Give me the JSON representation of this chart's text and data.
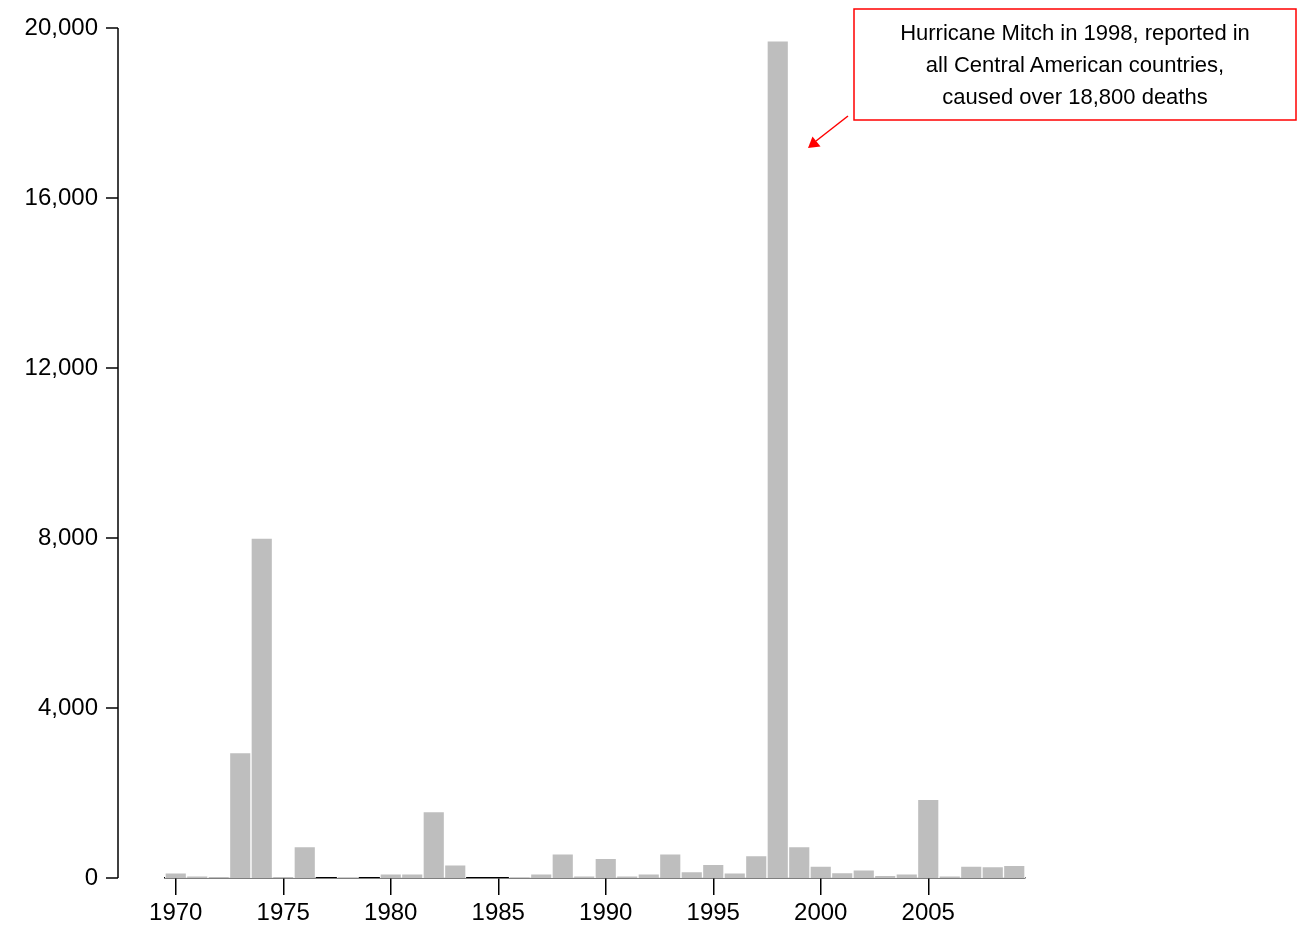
{
  "chart_data": {
    "type": "bar",
    "categories": [
      "1970",
      null,
      null,
      null,
      null,
      "1975",
      null,
      null,
      null,
      null,
      "1980",
      null,
      null,
      null,
      null,
      "1985",
      null,
      null,
      null,
      null,
      "1990",
      null,
      null,
      null,
      null,
      "1995",
      null,
      null,
      null,
      null,
      "2000",
      null,
      null,
      null,
      null,
      "2005",
      null,
      null,
      null,
      null
    ],
    "values": [
      120,
      50,
      30,
      2950,
      8000,
      30,
      740,
      0,
      20,
      0,
      100,
      100,
      1560,
      310,
      0,
      0,
      20,
      100,
      570,
      50,
      460,
      50,
      100,
      570,
      150,
      320,
      120,
      530,
      19700,
      740,
      280,
      130,
      190,
      60,
      100,
      1850,
      50,
      280,
      270,
      300
    ],
    "color": "#bebebe",
    "ylim": [
      0,
      20000
    ],
    "yticks": [
      0,
      {
        "value": 4000,
        "label": "4,000"
      },
      {
        "value": 8000,
        "label": "8,000"
      },
      {
        "value": 12000,
        "label": "12,000"
      },
      {
        "value": 16000,
        "label": "16,000"
      },
      {
        "value": 20000,
        "label": "20,000"
      }
    ],
    "grid": false,
    "legend": false,
    "annotations": [
      "Hurricane Mitch in 1998, reported in all Central American countries, caused over 18,800 deaths"
    ]
  }
}
